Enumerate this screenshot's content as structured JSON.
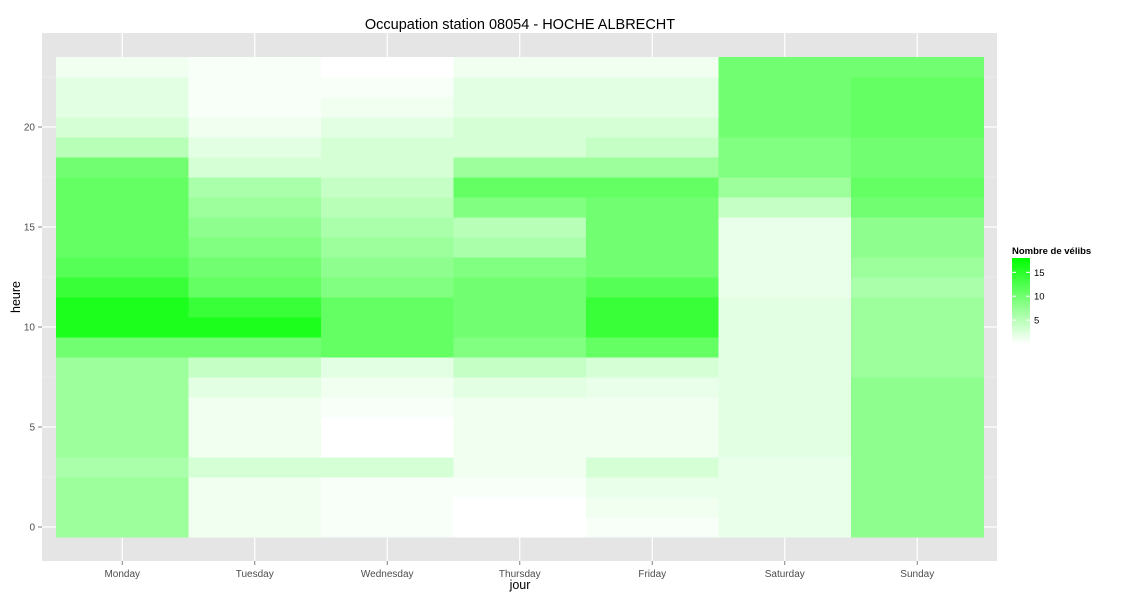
{
  "chart_data": {
    "type": "heatmap",
    "title": "Occupation station 08054 - HOCHE ALBRECHT",
    "xlabel": "jour",
    "ylabel": "heure",
    "x_categories": [
      "Monday",
      "Tuesday",
      "Wednesday",
      "Thursday",
      "Friday",
      "Saturday",
      "Sunday"
    ],
    "y_ticks": [
      0,
      5,
      10,
      15,
      20
    ],
    "y_range": [
      0,
      23
    ],
    "grid": true,
    "legend": {
      "title": "Nombre de vélibs",
      "ticks": [
        5,
        10,
        15
      ],
      "range": [
        0,
        18
      ],
      "low_color": "#ffffff",
      "high_color": "#00ff00",
      "placement": "right"
    },
    "values": [
      [
        7,
        1,
        0.5,
        0,
        0.5,
        1.5,
        8
      ],
      [
        7,
        1,
        0.5,
        0,
        1,
        1.5,
        8
      ],
      [
        7,
        1,
        0.5,
        0.5,
        1.5,
        1.5,
        8
      ],
      [
        6,
        3,
        3,
        1,
        3,
        1.5,
        8
      ],
      [
        7,
        1,
        0,
        1,
        1,
        2,
        8
      ],
      [
        7,
        1,
        0,
        1,
        1,
        2,
        8
      ],
      [
        7,
        1,
        0.5,
        1,
        1,
        2,
        8
      ],
      [
        7,
        2,
        1,
        2,
        1.5,
        2,
        8
      ],
      [
        7,
        4,
        2,
        4,
        3,
        2,
        7
      ],
      [
        10,
        10,
        11,
        9,
        11,
        2,
        7
      ],
      [
        16,
        16,
        11,
        10,
        14,
        2,
        7
      ],
      [
        16,
        14,
        11,
        10,
        14,
        2,
        7
      ],
      [
        14,
        11,
        9,
        10,
        12,
        1.5,
        6
      ],
      [
        12,
        10,
        8,
        9,
        10,
        1.5,
        7
      ],
      [
        11,
        9,
        7,
        6,
        10,
        1.5,
        8
      ],
      [
        11,
        8,
        6,
        5,
        10,
        1.5,
        8
      ],
      [
        11,
        7,
        5,
        9,
        10,
        4,
        10
      ],
      [
        11,
        6,
        4,
        11,
        11,
        7,
        11
      ],
      [
        10,
        3,
        3,
        7,
        7,
        9,
        10
      ],
      [
        5,
        2,
        3,
        3,
        4,
        9,
        10
      ],
      [
        3,
        1,
        2,
        3,
        3,
        10,
        11
      ],
      [
        2,
        0.5,
        1,
        2,
        2,
        10,
        11
      ],
      [
        2,
        0.5,
        0.5,
        2,
        2,
        10,
        11
      ],
      [
        1,
        0.5,
        0,
        1,
        1,
        10,
        10
      ]
    ]
  }
}
